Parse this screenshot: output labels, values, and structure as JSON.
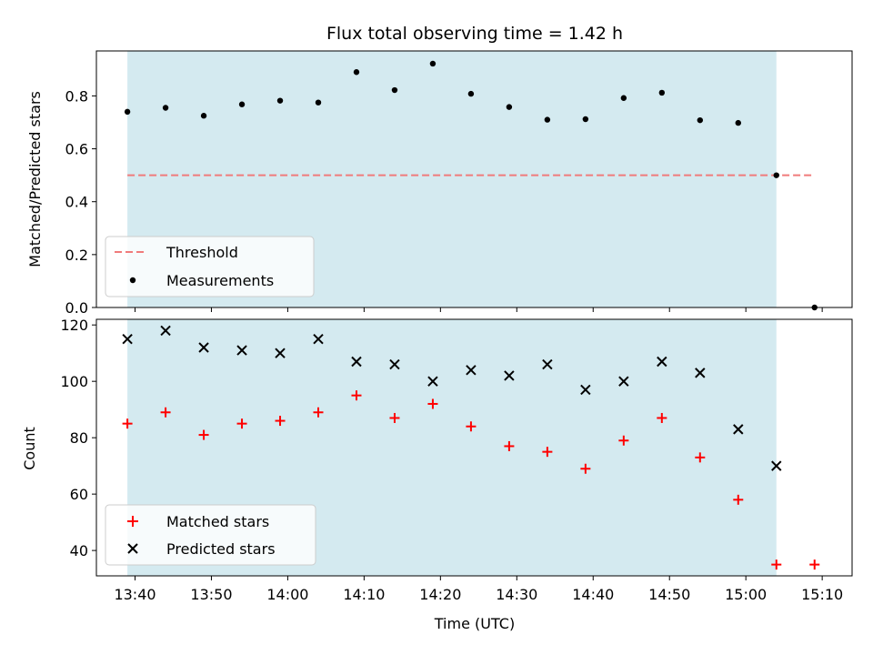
{
  "chart_data": [
    {
      "type": "scatter",
      "title": "Flux total observing time = 1.42 h",
      "ylabel": "Matched/Predicted stars",
      "xlabel": "",
      "ylim": [
        0,
        0.97
      ],
      "yticks": [
        "0.0",
        "0.2",
        "0.4",
        "0.6",
        "0.8"
      ],
      "ytick_values": [
        0.0,
        0.2,
        0.4,
        0.6,
        0.8
      ],
      "observing_window": [
        "13:39",
        "15:04"
      ],
      "threshold": {
        "name": "Threshold",
        "value": 0.5,
        "x_range": [
          "13:39",
          "15:09"
        ],
        "color": "#f07b7b"
      },
      "series": [
        {
          "name": "Measurements",
          "color": "#000000",
          "marker": "dot",
          "x": [
            "13:39",
            "13:44",
            "13:49",
            "13:54",
            "13:59",
            "14:04",
            "14:09",
            "14:14",
            "14:19",
            "14:24",
            "14:29",
            "14:34",
            "14:39",
            "14:44",
            "14:49",
            "14:54",
            "14:59",
            "15:04",
            "15:09"
          ],
          "y": [
            0.74,
            0.755,
            0.725,
            0.768,
            0.782,
            0.775,
            0.89,
            0.822,
            0.922,
            0.808,
            0.758,
            0.71,
            0.712,
            0.792,
            0.812,
            0.708,
            0.698,
            0.5,
            0.0
          ]
        }
      ],
      "legend": [
        "Threshold",
        "Measurements"
      ],
      "legend_position": "lower-left",
      "grid": false
    },
    {
      "type": "scatter",
      "title": "",
      "xlabel": "Time (UTC)",
      "ylabel": "Count",
      "ylim": [
        31,
        122
      ],
      "yticks": [
        "40",
        "60",
        "80",
        "100",
        "120"
      ],
      "ytick_values": [
        40,
        60,
        80,
        100,
        120
      ],
      "xticks": [
        "13:40",
        "13:50",
        "14:00",
        "14:10",
        "14:20",
        "14:30",
        "14:40",
        "14:50",
        "15:00",
        "15:10"
      ],
      "observing_window": [
        "13:39",
        "15:04"
      ],
      "series": [
        {
          "name": "Matched stars",
          "color": "#ff0000",
          "marker": "plus",
          "x": [
            "13:39",
            "13:44",
            "13:49",
            "13:54",
            "13:59",
            "14:04",
            "14:09",
            "14:14",
            "14:19",
            "14:24",
            "14:29",
            "14:34",
            "14:39",
            "14:44",
            "14:49",
            "14:54",
            "14:59",
            "15:04",
            "15:09"
          ],
          "y": [
            85,
            89,
            81,
            85,
            86,
            89,
            95,
            87,
            92,
            84,
            77,
            75,
            69,
            79,
            87,
            73,
            58,
            35,
            35
          ]
        },
        {
          "name": "Predicted stars",
          "color": "#000000",
          "marker": "x",
          "x": [
            "13:39",
            "13:44",
            "13:49",
            "13:54",
            "13:59",
            "14:04",
            "14:09",
            "14:14",
            "14:19",
            "14:24",
            "14:29",
            "14:34",
            "14:39",
            "14:44",
            "14:49",
            "14:54",
            "14:59",
            "15:04"
          ],
          "y": [
            115,
            118,
            112,
            111,
            110,
            115,
            107,
            106,
            100,
            104,
            102,
            106,
            97,
            100,
            107,
            103,
            83,
            70
          ]
        }
      ],
      "legend": [
        "Matched stars",
        "Predicted stars"
      ],
      "legend_position": "lower-left",
      "grid": false
    }
  ],
  "colors": {
    "span": "#d4eaf0",
    "threshold": "#f07b7b",
    "matched": "#ff0000",
    "predicted": "#000000"
  }
}
